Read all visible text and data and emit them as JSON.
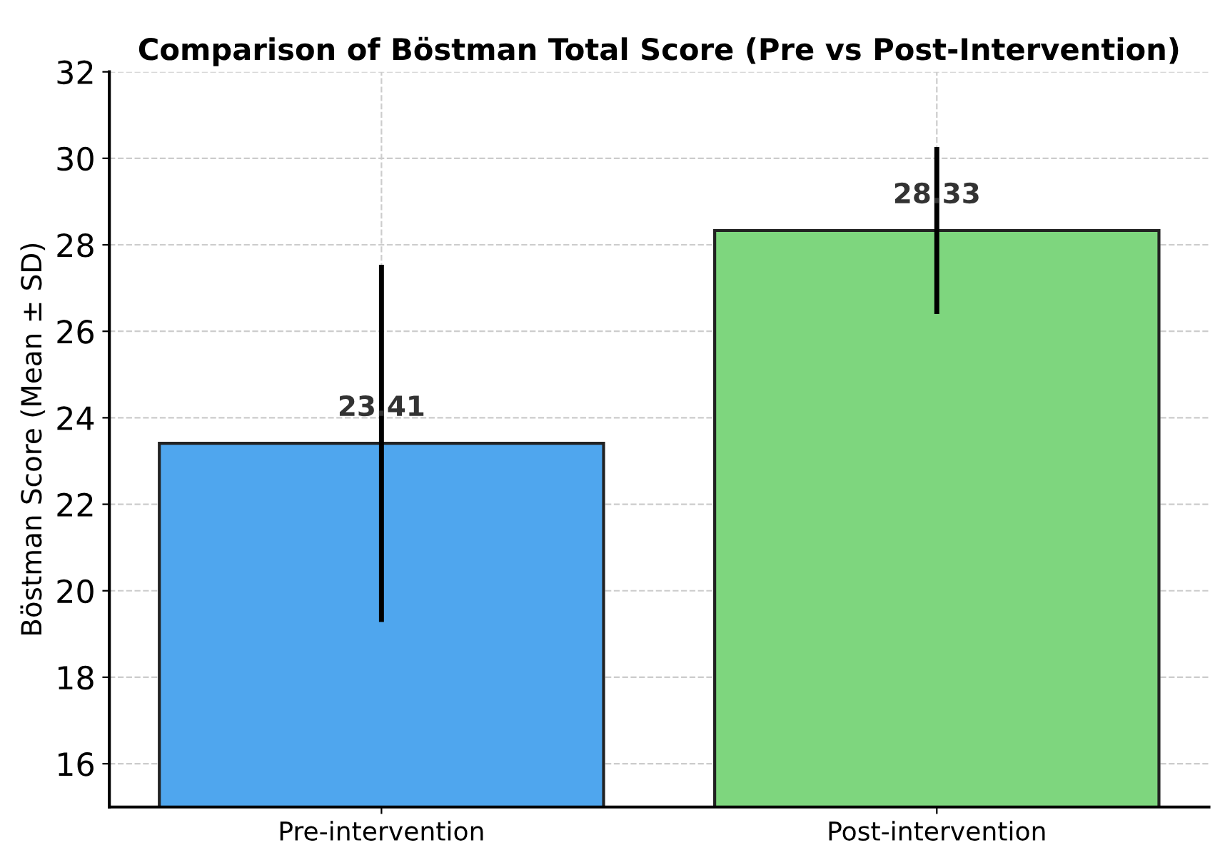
{
  "chart_data": {
    "type": "bar",
    "title": "Comparison of Böstman Total Score (Pre vs Post-Intervention)",
    "ylabel": "Böstman Score (Mean ± SD)",
    "categories": [
      "Pre-intervention",
      "Post-intervention"
    ],
    "values": [
      23.41,
      28.33
    ],
    "colors": [
      "#4fa6ee",
      "#7ed67e"
    ],
    "errors": [
      4.13,
      1.93
    ],
    "data_labels": true,
    "ylim": [
      15,
      32
    ],
    "yticks": [
      16,
      18,
      20,
      22,
      24,
      26,
      28,
      30,
      32
    ],
    "grid": true
  }
}
